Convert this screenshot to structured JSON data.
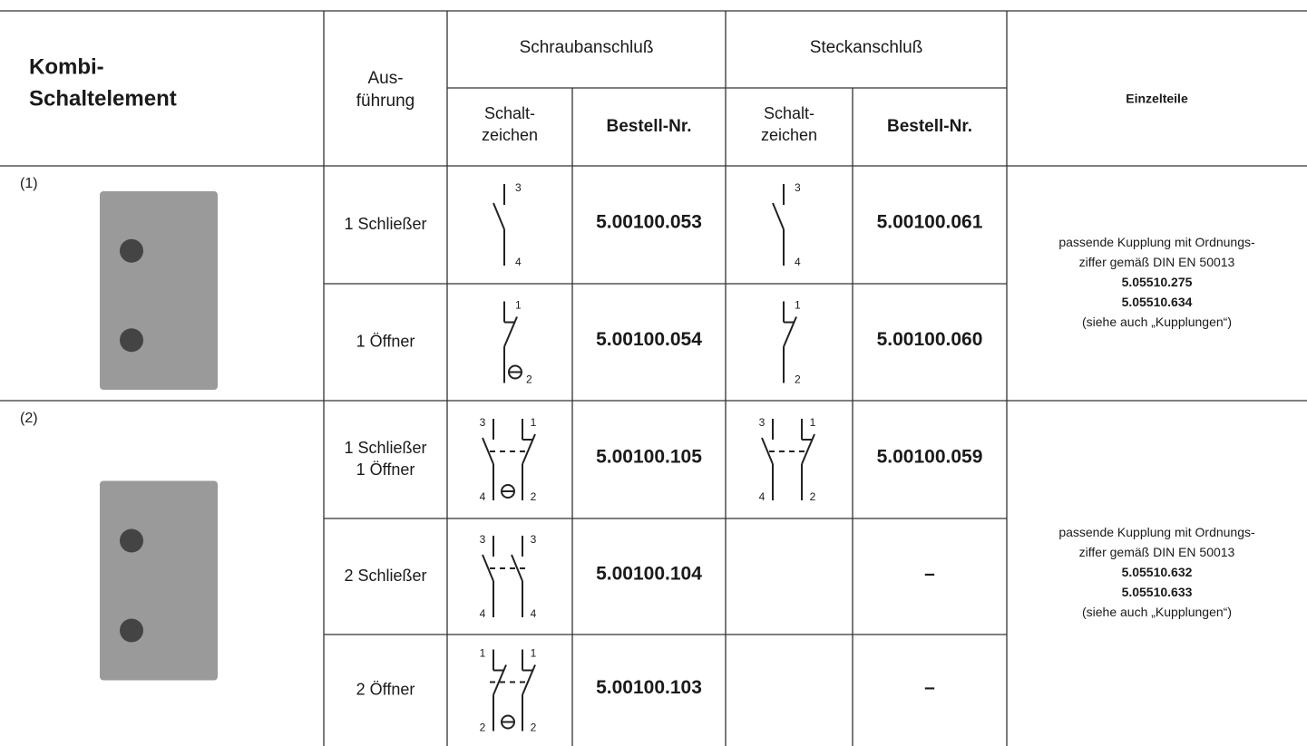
{
  "header": {
    "element": [
      "Kombi-",
      "Schaltelement"
    ],
    "ausfuehrung": [
      "Aus-",
      "führung"
    ],
    "schraub": "Schraubanschluß",
    "steck": "Steckanschluß",
    "schraub_sub": {
      "symbol": [
        "Schalt-",
        "zeichen"
      ],
      "order": "Bestell-Nr."
    },
    "steck_sub": {
      "symbol": [
        "Schalt-",
        "zeichen"
      ],
      "order": "Bestell-Nr."
    },
    "einzelteile": "Einzelteile"
  },
  "groups": [
    {
      "label": "(1)",
      "einzelteile": [
        "passende Kupplung mit Ordnungs-",
        "ziffer gemäß DIN EN 50013",
        "5.05510.275",
        "5.05510.634",
        "(siehe auch „Kupplungen“)"
      ],
      "rows": [
        {
          "ausfuehrung": [
            "1 Schließer"
          ],
          "schraub_symbol": [
            "3",
            "4"
          ],
          "schraub_nr": "5.00100.053",
          "steck_symbol": [
            "3",
            "4"
          ],
          "steck_nr": "5.00100.061"
        },
        {
          "ausfuehrung": [
            "1 Öffner"
          ],
          "schraub_symbol": [
            "1",
            "2"
          ],
          "schraub_nr": "5.00100.054",
          "steck_symbol": [
            "1",
            "2"
          ],
          "steck_nr": "5.00100.060"
        }
      ]
    },
    {
      "label": "(2)",
      "einzelteile": [
        "passende Kupplung mit Ordnungs-",
        "ziffer gemäß DIN EN 50013",
        "5.05510.632",
        "5.05510.633",
        "(siehe auch „Kupplungen“)"
      ],
      "rows": [
        {
          "ausfuehrung": [
            "1 Schließer",
            "1 Öffner"
          ],
          "schraub_symbol": [
            "3",
            "1",
            "4",
            "2"
          ],
          "schraub_nr": "5.00100.105",
          "steck_symbol": [
            "3",
            "1",
            "4",
            "2"
          ],
          "steck_nr": "5.00100.059"
        },
        {
          "ausfuehrung": [
            "2 Schließer"
          ],
          "schraub_symbol": [
            "3",
            "3",
            "4",
            "4"
          ],
          "schraub_nr": "5.00100.104",
          "steck_symbol": [],
          "steck_nr": "–"
        },
        {
          "ausfuehrung": [
            "2 Öffner"
          ],
          "schraub_symbol": [
            "1",
            "1",
            "2",
            "2"
          ],
          "schraub_nr": "5.00100.103",
          "steck_symbol": [],
          "steck_nr": "–"
        }
      ]
    }
  ]
}
